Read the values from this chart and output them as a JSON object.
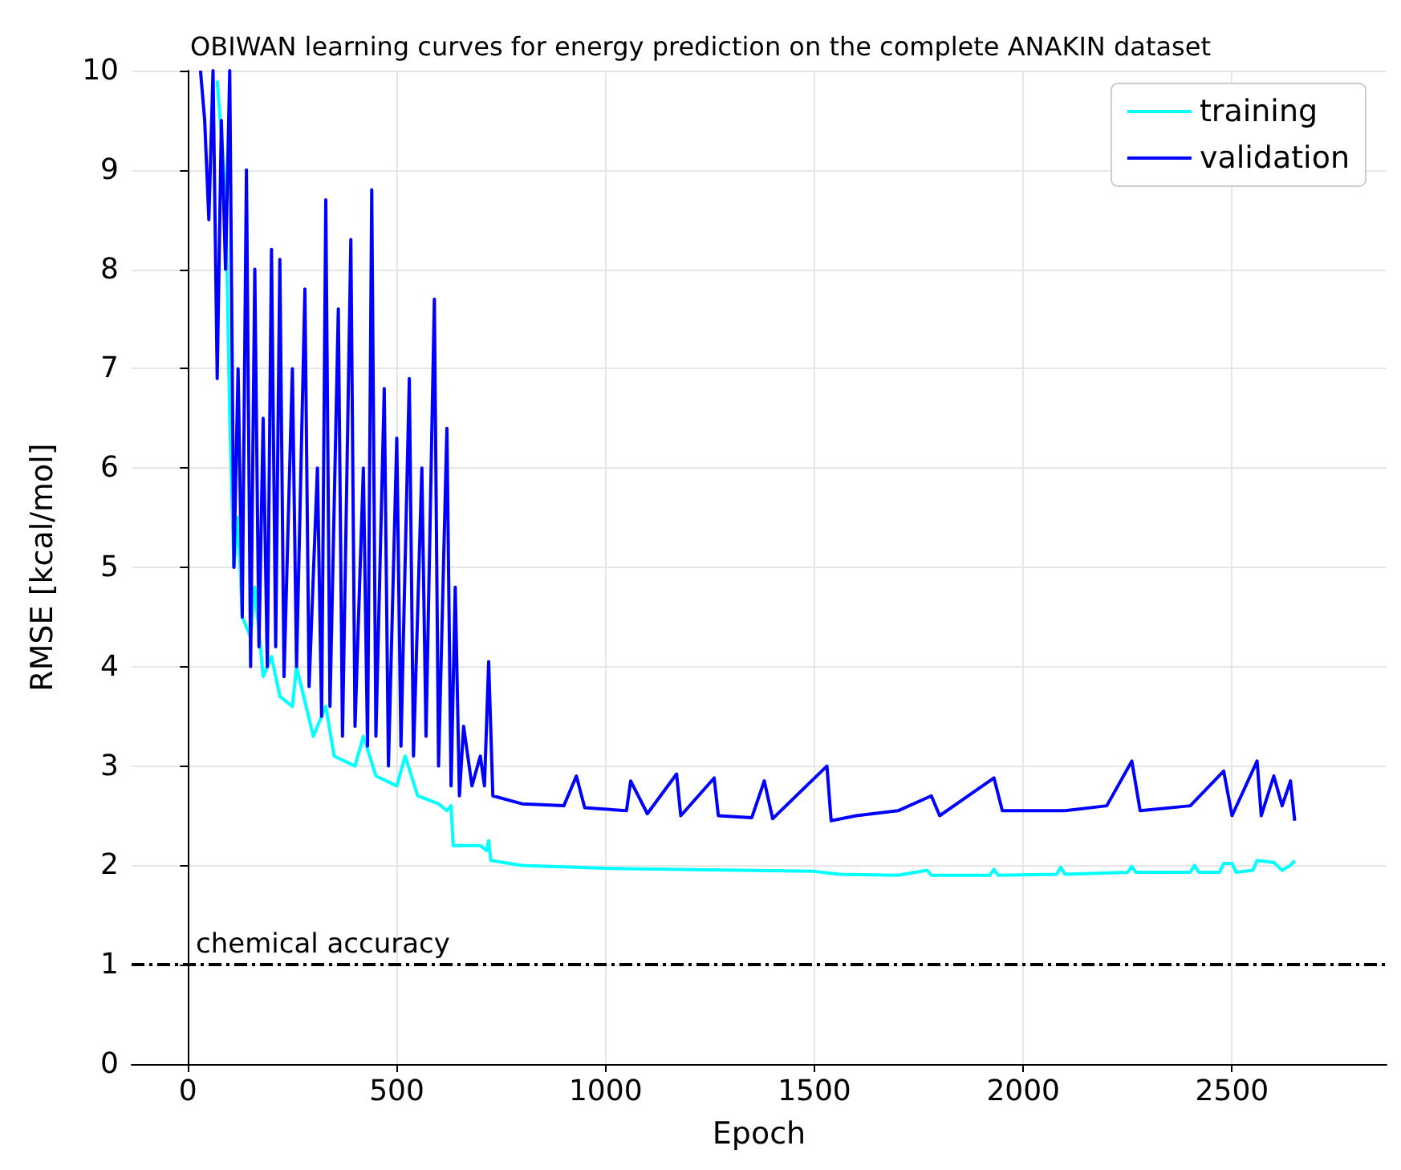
{
  "chart_data": {
    "type": "line",
    "title": "OBIWAN learning curves for energy prediction on the complete ANAKIN dataset",
    "xlabel": "Epoch",
    "ylabel": "RMSE [kcal/mol]",
    "xlim": [
      -135,
      2870
    ],
    "xticks": [
      0,
      500,
      1000,
      1500,
      2000,
      2500
    ],
    "ylim": [
      0,
      10
    ],
    "yticks": [
      0,
      1,
      2,
      3,
      4,
      5,
      6,
      7,
      8,
      9,
      10
    ],
    "grid": true,
    "legend": "top right",
    "line_style": "solid",
    "marker": "none",
    "ref_lines": [
      {
        "axis": "y",
        "value": 1,
        "label": "chemical accuracy",
        "color": "#000000",
        "line_style": "dashdot"
      }
    ],
    "series": [
      {
        "name": "training",
        "color": "#00ffff",
        "x": [
          70,
          90,
          100,
          110,
          120,
          130,
          150,
          160,
          180,
          200,
          220,
          250,
          260,
          300,
          330,
          350,
          400,
          420,
          450,
          500,
          520,
          550,
          600,
          620,
          630,
          635,
          700,
          715,
          720,
          725,
          800,
          1000,
          1500,
          1560,
          1700,
          1770,
          1780,
          1920,
          1930,
          1940,
          2080,
          2090,
          2100,
          2250,
          2260,
          2270,
          2400,
          2410,
          2420,
          2470,
          2480,
          2500,
          2510,
          2550,
          2560,
          2600,
          2620,
          2640,
          2650
        ],
        "values": [
          9.9,
          8.8,
          6.5,
          5,
          5.5,
          4.5,
          4.3,
          4.8,
          3.9,
          4.1,
          3.7,
          3.6,
          4,
          3.3,
          3.6,
          3.1,
          3.0,
          3.3,
          2.9,
          2.8,
          3.1,
          2.7,
          2.62,
          2.55,
          2.6,
          2.2,
          2.2,
          2.15,
          2.25,
          2.05,
          2.0,
          1.97,
          1.94,
          1.91,
          1.9,
          1.95,
          1.9,
          1.9,
          1.96,
          1.9,
          1.91,
          1.98,
          1.91,
          1.93,
          1.99,
          1.93,
          1.93,
          2.0,
          1.93,
          1.93,
          2.02,
          2.02,
          1.93,
          1.95,
          2.05,
          2.03,
          1.95,
          2.0,
          2.05
        ]
      },
      {
        "name": "validation",
        "color": "#0000ff",
        "x": [
          30,
          40,
          50,
          60,
          70,
          80,
          90,
          100,
          110,
          120,
          130,
          140,
          150,
          160,
          170,
          180,
          190,
          200,
          210,
          220,
          230,
          250,
          260,
          280,
          290,
          310,
          320,
          330,
          340,
          360,
          370,
          390,
          400,
          420,
          430,
          440,
          450,
          470,
          480,
          500,
          510,
          530,
          540,
          560,
          570,
          590,
          600,
          620,
          630,
          640,
          650,
          660,
          680,
          700,
          710,
          720,
          730,
          800,
          900,
          930,
          950,
          1050,
          1060,
          1100,
          1170,
          1180,
          1260,
          1270,
          1350,
          1380,
          1400,
          1530,
          1540,
          1600,
          1700,
          1780,
          1800,
          1930,
          1950,
          2100,
          2200,
          2260,
          2280,
          2400,
          2480,
          2500,
          2560,
          2570,
          2600,
          2620,
          2640,
          2650
        ],
        "values": [
          10,
          9.5,
          8.5,
          10,
          6.9,
          9.5,
          8,
          10,
          5,
          7,
          4.5,
          9,
          4,
          8,
          4.2,
          6.5,
          4,
          8.2,
          4.2,
          8.1,
          3.9,
          7,
          4,
          7.8,
          3.8,
          6,
          3.5,
          8.7,
          3.6,
          7.6,
          3.3,
          8.3,
          3.4,
          6,
          3.2,
          8.8,
          3.3,
          6.8,
          3,
          6.3,
          3.2,
          6.9,
          3.1,
          6,
          3.3,
          7.7,
          3,
          6.4,
          2.8,
          4.8,
          2.7,
          3.4,
          2.8,
          3.1,
          2.8,
          4.05,
          2.7,
          2.62,
          2.6,
          2.9,
          2.58,
          2.55,
          2.85,
          2.52,
          2.92,
          2.5,
          2.88,
          2.5,
          2.48,
          2.85,
          2.47,
          3.0,
          2.45,
          2.5,
          2.55,
          2.7,
          2.5,
          2.88,
          2.55,
          2.55,
          2.6,
          3.05,
          2.55,
          2.6,
          2.95,
          2.5,
          3.05,
          2.5,
          2.9,
          2.6,
          2.85,
          2.45
        ]
      }
    ]
  }
}
